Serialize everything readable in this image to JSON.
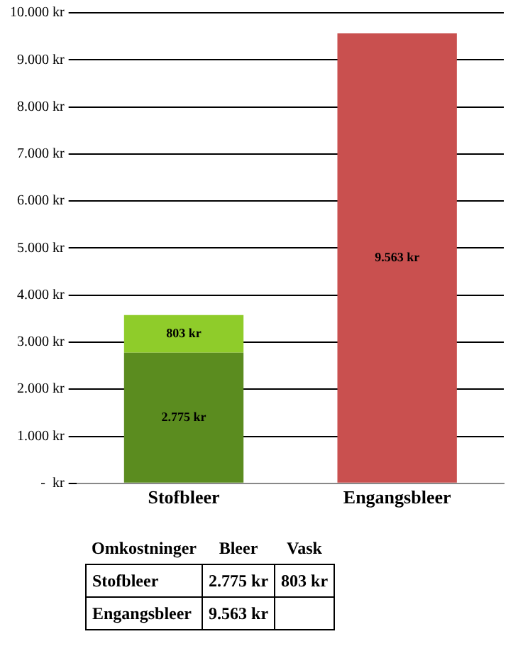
{
  "chart_data": {
    "type": "bar",
    "stacked": true,
    "categories": [
      "Stofbleer",
      "Engangsbleer"
    ],
    "series": [
      {
        "colors": [
          "#5b8c1f",
          "#c9504f"
        ],
        "values": [
          2775,
          9563
        ],
        "value_labels": [
          "2.775 kr",
          "9.563 kr"
        ]
      },
      {
        "color": "#8fcc2a",
        "values": [
          803,
          null
        ],
        "value_labels": [
          "803 kr",
          null
        ]
      }
    ],
    "annotations": [
      "Omkostninger",
      "Bleer",
      "Vask"
    ],
    "ylim": [
      0,
      10000
    ],
    "yticks": [
      {
        "value": 0,
        "label": "-  kr"
      },
      {
        "value": 1000,
        "label": "1.000 kr"
      },
      {
        "value": 2000,
        "label": "2.000 kr"
      },
      {
        "value": 3000,
        "label": "3.000 kr"
      },
      {
        "value": 4000,
        "label": "4.000 kr"
      },
      {
        "value": 5000,
        "label": "5.000 kr"
      },
      {
        "value": 6000,
        "label": "6.000 kr"
      },
      {
        "value": 7000,
        "label": "7.000 kr"
      },
      {
        "value": 8000,
        "label": "8.000 kr"
      },
      {
        "value": 9000,
        "label": "9.000 kr"
      },
      {
        "value": 10000,
        "label": "10.000 kr"
      }
    ],
    "grid": "y"
  }
}
